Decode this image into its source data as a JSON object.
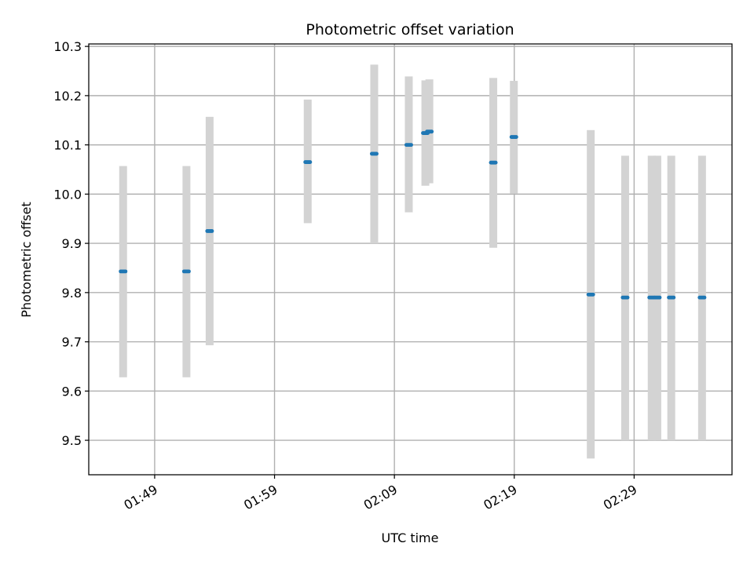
{
  "chart_data": {
    "type": "scatter",
    "title": "Photometric offset variation",
    "xlabel": "UTC time",
    "ylabel": "Photometric offset",
    "x_tick_labels": [
      "01:49",
      "01:59",
      "02:09",
      "02:19",
      "02:29"
    ],
    "x_tick_minutes": [
      109,
      119,
      129,
      139,
      149
    ],
    "y_ticks": [
      9.5,
      9.6,
      9.7,
      9.8,
      9.9,
      10.0,
      10.1,
      10.2,
      10.3
    ],
    "y_tick_labels": [
      "9.5",
      "9.6",
      "9.7",
      "9.8",
      "9.9",
      "10.0",
      "10.1",
      "10.2",
      "10.3"
    ],
    "xlim": [
      "01:43:30",
      "02:37:10"
    ],
    "ylim": [
      9.43,
      10.305
    ],
    "grid": true,
    "colors": {
      "point": "#1f77b4",
      "error_band": "#d3d3d3",
      "grid": "#b0b0b0"
    },
    "points": [
      {
        "time": "01:46:22",
        "y": 9.843,
        "low": 9.628,
        "high": 10.057
      },
      {
        "time": "01:51:39",
        "y": 9.843,
        "low": 9.628,
        "high": 10.057
      },
      {
        "time": "01:53:35",
        "y": 9.925,
        "low": 9.693,
        "high": 10.157
      },
      {
        "time": "02:01:46",
        "y": 10.065,
        "low": 9.941,
        "high": 10.192
      },
      {
        "time": "02:07:19",
        "y": 10.082,
        "low": 9.9,
        "high": 10.263
      },
      {
        "time": "02:10:12",
        "y": 10.1,
        "low": 9.963,
        "high": 10.239
      },
      {
        "time": "02:11:35",
        "y": 10.124,
        "low": 10.017,
        "high": 10.231
      },
      {
        "time": "02:11:55",
        "y": 10.127,
        "low": 10.022,
        "high": 10.233
      },
      {
        "time": "02:17:15",
        "y": 10.064,
        "low": 9.891,
        "high": 10.236
      },
      {
        "time": "02:18:58",
        "y": 10.116,
        "low": 10.001,
        "high": 10.23
      },
      {
        "time": "02:25:23",
        "y": 9.796,
        "low": 9.463,
        "high": 10.13
      },
      {
        "time": "02:28:15",
        "y": 9.79,
        "low": 9.5,
        "high": 10.078
      },
      {
        "time": "02:30:28",
        "y": 9.79,
        "low": 9.5,
        "high": 10.078
      },
      {
        "time": "02:30:56",
        "y": 9.79,
        "low": 9.5,
        "high": 10.078
      },
      {
        "time": "02:32:06",
        "y": 9.79,
        "low": 9.5,
        "high": 10.078
      },
      {
        "time": "02:34:40",
        "y": 9.79,
        "low": 9.5,
        "high": 10.078
      }
    ]
  }
}
